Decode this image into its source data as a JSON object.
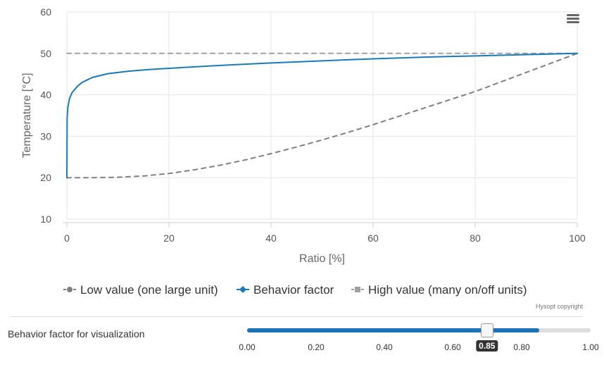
{
  "chart_data": {
    "type": "line",
    "xlabel": "Ratio [%]",
    "ylabel": "Temperature [°C]",
    "xlim": [
      0,
      100
    ],
    "ylim": [
      10,
      60
    ],
    "xticks": [
      0,
      20,
      40,
      60,
      80,
      100
    ],
    "yticks": [
      10,
      20,
      30,
      40,
      50,
      60
    ],
    "grid": true,
    "legend_position": "bottom",
    "series": [
      {
        "name": "Low value (one large unit)",
        "color": "#808080",
        "dash": "dashed",
        "marker": "circle",
        "x": [
          0,
          5,
          10,
          15,
          20,
          25,
          30,
          35,
          40,
          45,
          50,
          55,
          60,
          65,
          70,
          75,
          80,
          85,
          90,
          95,
          100
        ],
        "y": [
          20,
          20,
          20.1,
          20.4,
          21,
          21.9,
          23,
          24.3,
          25.8,
          27.4,
          29.1,
          30.9,
          32.8,
          34.8,
          36.8,
          38.8,
          40.8,
          43.1,
          45.4,
          47.7,
          50
        ]
      },
      {
        "name": "Behavior factor",
        "color": "#1a7ab8",
        "dash": "solid",
        "marker": "diamond",
        "x": [
          0,
          0.05,
          0.2,
          0.5,
          1,
          2,
          3,
          5,
          8,
          12,
          16,
          20,
          30,
          40,
          50,
          60,
          70,
          80,
          90,
          95,
          100
        ],
        "y": [
          20,
          34.5,
          37,
          39,
          40.5,
          42,
          43,
          44.2,
          45.1,
          45.7,
          46.1,
          46.4,
          47.1,
          47.7,
          48.2,
          48.7,
          49.1,
          49.4,
          49.7,
          49.85,
          50
        ]
      },
      {
        "name": "High value (many on/off units)",
        "color": "#a0a0a0",
        "dash": "dashed",
        "marker": "square",
        "x": [
          0,
          100
        ],
        "y": [
          50,
          50
        ]
      }
    ]
  },
  "credits": "Hysopt copyright",
  "slider": {
    "label": "Behavior factor for visualization",
    "value": 0.85,
    "value_text": "0.85",
    "min": 0,
    "max": 1,
    "ticks": [
      "0.00",
      "0.20",
      "0.40",
      "0.60",
      "0.80",
      "1.00"
    ],
    "tick_values": [
      0,
      0.2,
      0.4,
      0.6,
      0.8,
      1.0
    ],
    "fill_color": "#1a73b5"
  },
  "menu": {
    "icon": "hamburger-menu-icon"
  }
}
